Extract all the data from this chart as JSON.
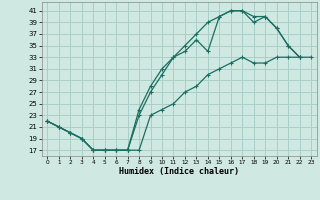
{
  "xlabel": "Humidex (Indice chaleur)",
  "background_color": "#cfe8e2",
  "grid_color": "#a8cfc8",
  "line_color": "#1a6e62",
  "x_ticks": [
    0,
    1,
    2,
    3,
    4,
    5,
    6,
    7,
    8,
    9,
    10,
    11,
    12,
    13,
    14,
    15,
    16,
    17,
    18,
    19,
    20,
    21,
    22,
    23
  ],
  "y_ticks": [
    17,
    19,
    21,
    23,
    25,
    27,
    29,
    31,
    33,
    35,
    37,
    39,
    41
  ],
  "ylim": [
    16.0,
    42.5
  ],
  "xlim": [
    -0.5,
    23.5
  ],
  "line1_x": [
    0,
    1,
    2,
    3,
    4,
    5,
    6,
    7,
    8,
    9,
    10,
    11,
    12,
    13,
    14,
    15,
    16,
    17,
    18,
    19,
    20,
    21,
    22
  ],
  "line1_y": [
    22,
    21,
    20,
    19,
    17,
    17,
    17,
    17,
    24,
    28,
    31,
    33,
    35,
    37,
    39,
    40,
    41,
    41,
    40,
    40,
    38,
    35,
    33
  ],
  "line2_x": [
    0,
    1,
    2,
    3,
    4,
    5,
    6,
    7,
    8,
    9,
    10,
    11,
    12,
    13,
    14,
    15,
    16,
    17,
    18,
    19,
    20,
    21,
    22
  ],
  "line2_y": [
    22,
    21,
    20,
    19,
    17,
    17,
    17,
    17,
    23,
    27,
    30,
    33,
    34,
    36,
    34,
    40,
    41,
    41,
    39,
    40,
    38,
    35,
    33
  ],
  "line3_x": [
    0,
    1,
    2,
    3,
    4,
    5,
    6,
    7,
    8,
    9,
    10,
    11,
    12,
    13,
    14,
    15,
    16,
    17,
    18,
    19,
    20,
    21,
    22,
    23
  ],
  "line3_y": [
    22,
    21,
    20,
    19,
    17,
    17,
    17,
    17,
    17,
    23,
    24,
    25,
    27,
    28,
    30,
    31,
    32,
    33,
    32,
    32,
    33,
    33,
    33,
    33
  ]
}
